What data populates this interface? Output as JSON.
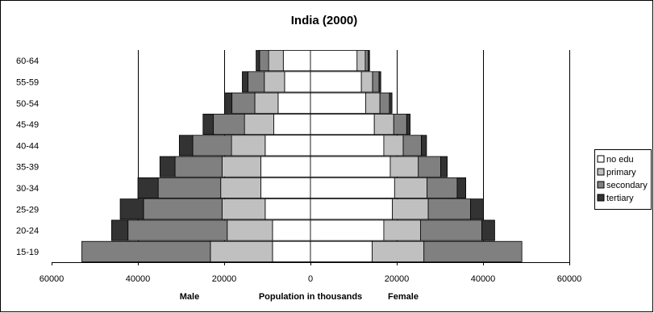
{
  "chart_data": {
    "type": "bar",
    "orientation": "horizontal",
    "stacked": true,
    "title": "India (2000)",
    "xlabel_left": "Male",
    "xlabel_center": "Population in thousands",
    "xlabel_right": "Female",
    "xlim": [
      -60000,
      60000
    ],
    "xticks": [
      -60000,
      -40000,
      -20000,
      0,
      20000,
      40000,
      60000
    ],
    "xtick_labels": [
      "60000",
      "40000",
      "20000",
      "0",
      "20000",
      "40000",
      "60000"
    ],
    "grid": "vertical",
    "legend_position": "right",
    "categories": [
      "15-19",
      "20-24",
      "25-29",
      "30-34",
      "35-39",
      "40-44",
      "45-49",
      "50-54",
      "55-59",
      "60-64"
    ],
    "series": [
      {
        "name": "no edu",
        "color": "#ffffff",
        "male": [
          8800,
          8800,
          10500,
          11500,
          11500,
          10500,
          8500,
          7500,
          6000,
          6300
        ],
        "female": [
          14300,
          17000,
          19000,
          19500,
          18500,
          17000,
          14800,
          12800,
          11800,
          10800
        ]
      },
      {
        "name": "primary",
        "color": "#c0c0c0",
        "male": [
          14400,
          10500,
          10000,
          9300,
          9000,
          7800,
          6800,
          5400,
          4700,
          3400
        ],
        "female": [
          12000,
          8500,
          8300,
          7500,
          6500,
          4500,
          4500,
          3300,
          2600,
          1900
        ]
      },
      {
        "name": "secondary",
        "color": "#808080",
        "male": [
          29800,
          23000,
          18200,
          14500,
          10900,
          9000,
          7200,
          5300,
          3800,
          2100
        ],
        "female": [
          22700,
          14200,
          9800,
          7000,
          5200,
          4200,
          3000,
          2200,
          1500,
          700
        ]
      },
      {
        "name": "tertiary",
        "color": "#333333",
        "male": [
          0,
          3800,
          5400,
          4700,
          3500,
          3100,
          2400,
          1700,
          1300,
          800
        ],
        "female": [
          0,
          3000,
          3000,
          2000,
          1500,
          1200,
          800,
          600,
          400,
          300
        ]
      }
    ]
  }
}
